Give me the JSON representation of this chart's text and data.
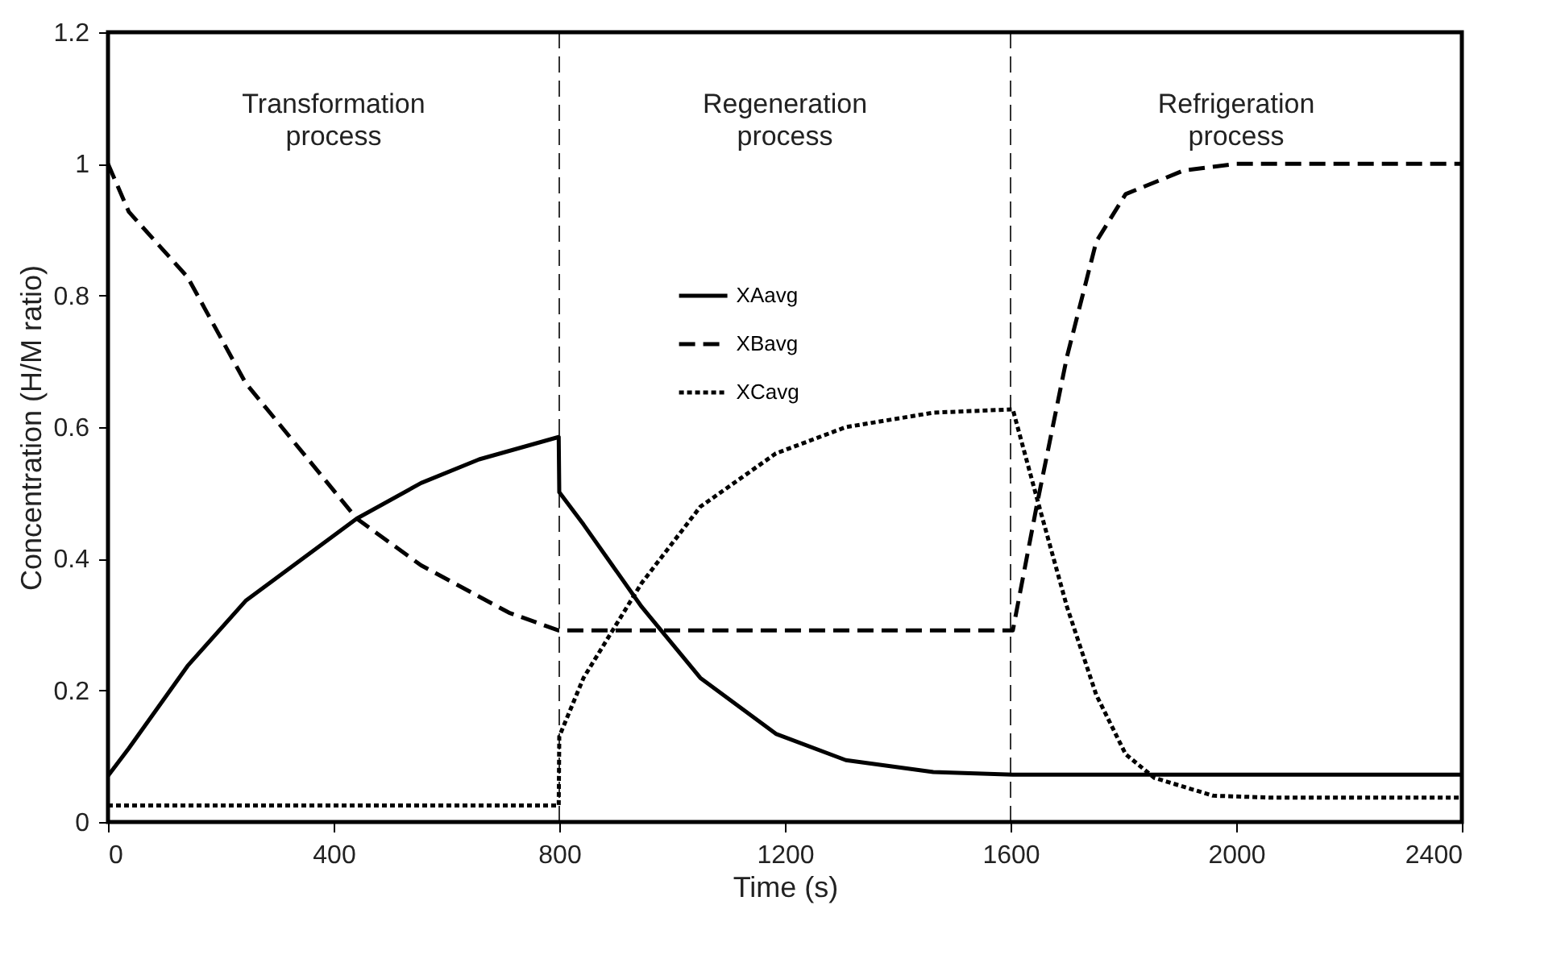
{
  "chart_data": {
    "type": "line",
    "xlabel": "Time (s)",
    "ylabel": "Concentration (H/M ratio)",
    "xlim": [
      0,
      2400
    ],
    "xticks": [
      0,
      400,
      800,
      1200,
      1600,
      2000,
      2400
    ],
    "ylim": [
      0,
      1.2
    ],
    "yticks": [
      0,
      0.2,
      0.4,
      0.6,
      0.8,
      1,
      1.2
    ],
    "grid": false,
    "legend": "top",
    "series": [
      {
        "name": "XAavg",
        "color": "#000000",
        "line_style": "solid",
        "x": [
          0,
          37,
          141,
          244,
          441,
          555,
          658,
          799,
          800,
          843,
          946,
          1050,
          1184,
          1308,
          1463,
          1604,
          2400
        ],
        "values": [
          0.07,
          0.112,
          0.237,
          0.336,
          0.461,
          0.515,
          0.551,
          0.585,
          0.501,
          0.452,
          0.327,
          0.219,
          0.134,
          0.094,
          0.076,
          0.072,
          0.072
        ]
      },
      {
        "name": "XBavg",
        "color": "#000000",
        "line_style": "dashed",
        "x": [
          0,
          37,
          141,
          244,
          441,
          555,
          711,
          799,
          1604,
          1646,
          1700,
          1752,
          1804,
          1907,
          2000,
          2400
        ],
        "values": [
          1.0,
          0.927,
          0.828,
          0.667,
          0.461,
          0.39,
          0.318,
          0.291,
          0.291,
          0.479,
          0.707,
          0.882,
          0.954,
          0.99,
          1.0,
          1.0
        ]
      },
      {
        "name": "XCavg",
        "color": "#000000",
        "line_style": "dotted",
        "x": [
          0,
          799,
          800,
          843,
          946,
          1050,
          1184,
          1308,
          1463,
          1604,
          1648,
          1700,
          1752,
          1804,
          1855,
          1959,
          2062,
          2400
        ],
        "values": [
          0.025,
          0.025,
          0.13,
          0.219,
          0.363,
          0.479,
          0.56,
          0.6,
          0.622,
          0.627,
          0.488,
          0.327,
          0.193,
          0.103,
          0.067,
          0.04,
          0.037,
          0.037
        ]
      }
    ],
    "ref_lines": [
      {
        "axis": "x",
        "value": 800,
        "line_style": "dashed"
      },
      {
        "axis": "x",
        "value": 1600,
        "line_style": "dashed"
      }
    ],
    "annotations": [
      "Transformation\nprocess",
      "Regeneration\nprocess",
      "Refrigeration\nprocess"
    ]
  }
}
